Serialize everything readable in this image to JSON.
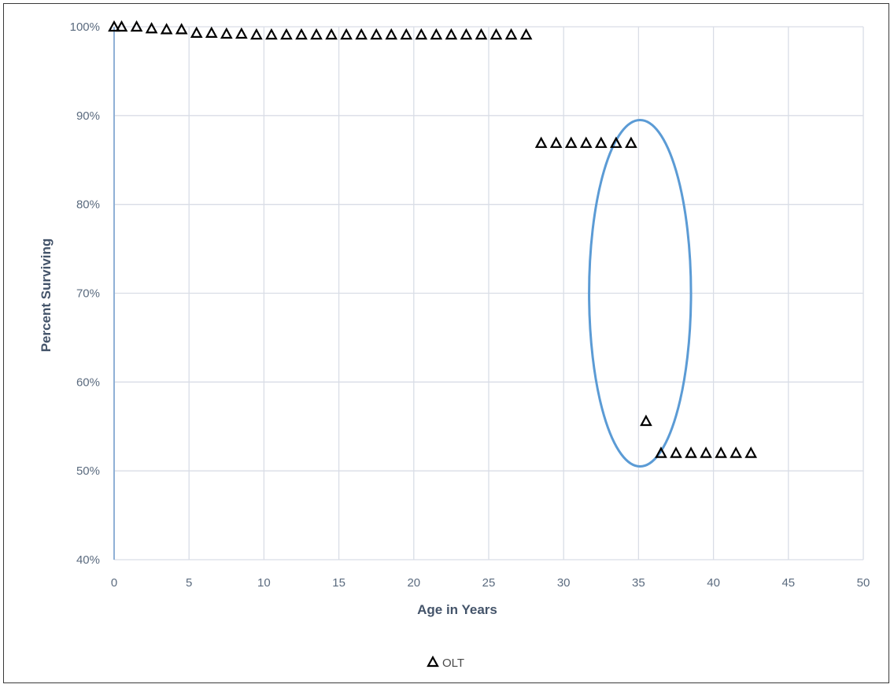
{
  "chart_data": {
    "type": "scatter",
    "title": "",
    "xlabel": "Age in Years",
    "ylabel": "Percent Surviving",
    "xlim": [
      0,
      50
    ],
    "ylim": [
      40,
      100
    ],
    "x_ticks": [
      "0",
      "5",
      "10",
      "15",
      "20",
      "25",
      "30",
      "35",
      "40",
      "45",
      "50"
    ],
    "y_ticks": [
      "40%",
      "50%",
      "60%",
      "70%",
      "80%",
      "90%",
      "100%"
    ],
    "grid": true,
    "legend_position": "bottom",
    "marker": "open-triangle",
    "colors": {
      "grid": "#d9dde6",
      "axis": "#8fb0d6",
      "ellipse": "#5b9bd5",
      "marker": "#000000"
    },
    "series": [
      {
        "name": "OLT",
        "points": [
          [
            0,
            100
          ],
          [
            0.5,
            100
          ],
          [
            1.5,
            100
          ],
          [
            2.5,
            99.8
          ],
          [
            3.5,
            99.7
          ],
          [
            4.5,
            99.7
          ],
          [
            5.5,
            99.3
          ],
          [
            6.5,
            99.3
          ],
          [
            7.5,
            99.2
          ],
          [
            8.5,
            99.2
          ],
          [
            9.5,
            99.1
          ],
          [
            10.5,
            99.1
          ],
          [
            11.5,
            99.1
          ],
          [
            12.5,
            99.1
          ],
          [
            13.5,
            99.1
          ],
          [
            14.5,
            99.1
          ],
          [
            15.5,
            99.1
          ],
          [
            16.5,
            99.1
          ],
          [
            17.5,
            99.1
          ],
          [
            18.5,
            99.1
          ],
          [
            19.5,
            99.1
          ],
          [
            20.5,
            99.1
          ],
          [
            21.5,
            99.1
          ],
          [
            22.5,
            99.1
          ],
          [
            23.5,
            99.1
          ],
          [
            24.5,
            99.1
          ],
          [
            25.5,
            99.1
          ],
          [
            26.5,
            99.1
          ],
          [
            27.5,
            99.1
          ],
          [
            28.5,
            86.9
          ],
          [
            29.5,
            86.9
          ],
          [
            30.5,
            86.9
          ],
          [
            31.5,
            86.9
          ],
          [
            32.5,
            86.9
          ],
          [
            33.5,
            86.9
          ],
          [
            34.5,
            86.9
          ],
          [
            35.5,
            55.6
          ],
          [
            36.5,
            52.0
          ],
          [
            37.5,
            52.0
          ],
          [
            38.5,
            52.0
          ],
          [
            39.5,
            52.0
          ],
          [
            40.5,
            52.0
          ],
          [
            41.5,
            52.0
          ],
          [
            42.5,
            52.0
          ]
        ]
      }
    ],
    "annotations": [
      {
        "type": "ellipse",
        "cx": 35.1,
        "cy": 70.0,
        "rx": 3.4,
        "ry": 19.5
      }
    ]
  }
}
